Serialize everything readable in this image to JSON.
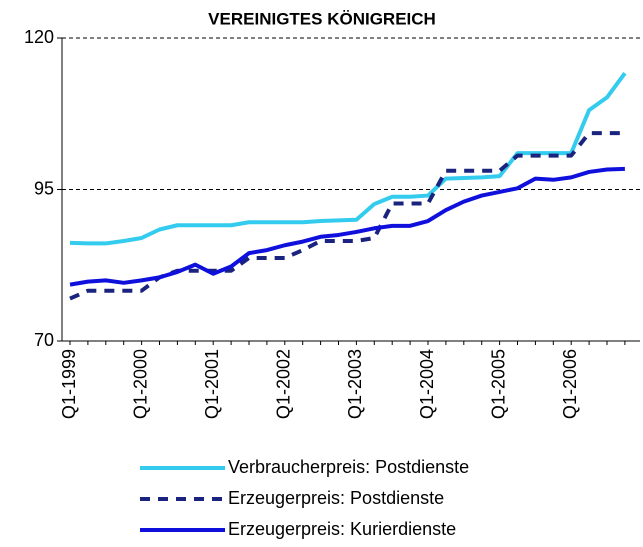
{
  "chart_data": {
    "type": "line",
    "title": "VEREINIGTES KÖNIGREICH",
    "categories": [
      "Q1-1999",
      null,
      null,
      null,
      "Q1-2000",
      null,
      null,
      null,
      "Q1-2001",
      null,
      null,
      null,
      "Q1-2002",
      null,
      null,
      null,
      "Q1-2003",
      null,
      null,
      null,
      "Q1-2004",
      null,
      null,
      null,
      "Q1-2005",
      null,
      null,
      null,
      "Q1-2006",
      null,
      null,
      null
    ],
    "series": [
      {
        "name": "Verbraucherpreis: Postdienste",
        "color": "#33ccee",
        "style": "solid",
        "values": [
          86.2,
          86.1,
          86.1,
          86.5,
          87.0,
          88.4,
          89.1,
          89.1,
          89.1,
          89.1,
          89.6,
          89.6,
          89.6,
          89.6,
          89.8,
          89.9,
          90.0,
          92.6,
          93.8,
          93.8,
          94.0,
          96.8,
          96.9,
          97.0,
          97.2,
          101.0,
          101.0,
          101.0,
          101.0,
          108.1,
          110.2,
          114.2
        ]
      },
      {
        "name": "Erzeugerpreis: Postdienste",
        "color": "#1a237e",
        "style": "dashed",
        "values": [
          77.0,
          78.3,
          78.3,
          78.3,
          78.3,
          80.5,
          81.6,
          81.6,
          81.6,
          81.6,
          83.7,
          83.7,
          83.7,
          85.0,
          86.5,
          86.5,
          86.5,
          87.0,
          92.7,
          92.7,
          92.7,
          98.1,
          98.1,
          98.1,
          98.1,
          100.6,
          100.6,
          100.6,
          100.6,
          104.3,
          104.3,
          104.3
        ]
      },
      {
        "name": "Erzeugerpreis: Kurierdienste",
        "color": "#1010dd",
        "style": "solid",
        "values": [
          79.3,
          79.8,
          80.0,
          79.6,
          80.0,
          80.5,
          81.4,
          82.6,
          81.1,
          82.3,
          84.5,
          85.0,
          85.8,
          86.4,
          87.2,
          87.5,
          88.0,
          88.6,
          89.0,
          89.0,
          89.8,
          91.6,
          93.0,
          94.0,
          94.6,
          95.2,
          96.8,
          96.6,
          97.0,
          97.9,
          98.3,
          98.4
        ]
      }
    ],
    "ylim": [
      70,
      120
    ],
    "yticks": [
      70,
      95,
      120
    ],
    "grid": true
  }
}
